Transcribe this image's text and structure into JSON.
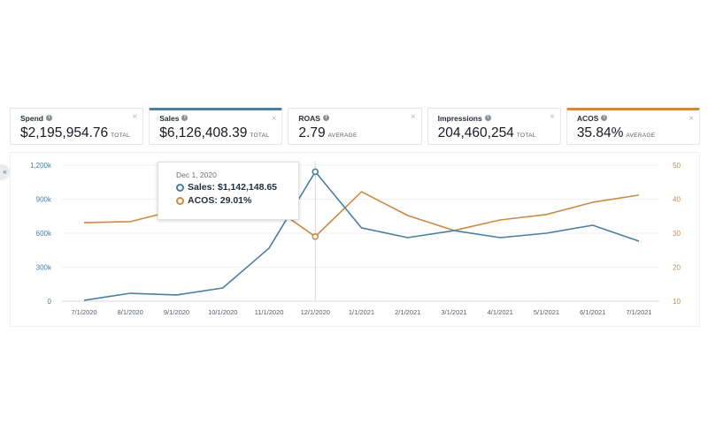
{
  "sidebar": {
    "collapse_label": "«"
  },
  "metric_cards": [
    {
      "title": "Spend",
      "value": "$2,195,954.76",
      "unit": "TOTAL",
      "selected": false,
      "accent": null
    },
    {
      "title": "Sales",
      "value": "$6,126,408.39",
      "unit": "TOTAL",
      "selected": true,
      "accent": "#4a7fa0"
    },
    {
      "title": "ROAS",
      "value": "2.79",
      "unit": "AVERAGE",
      "selected": false,
      "accent": null
    },
    {
      "title": "Impressions",
      "value": "204,460,254",
      "unit": "TOTAL",
      "selected": false,
      "accent": null
    },
    {
      "title": "ACOS",
      "value": "35.84%",
      "unit": "AVERAGE",
      "selected": true,
      "accent": "#c98b45"
    }
  ],
  "icons": {
    "info": "info-icon",
    "close": "close-icon",
    "close_glyph": "×",
    "info_glyph": "i"
  },
  "tooltip": {
    "date": "Dec 1, 2020",
    "rows": [
      {
        "label": "Sales: $1,142,148.65",
        "color": "#4a7fa0"
      },
      {
        "label": "ACOS: 29.01%",
        "color": "#c98b45"
      }
    ]
  },
  "chart_data": {
    "type": "line",
    "title": "",
    "xlabel": "",
    "ylabel": "Sales",
    "y2label": "ACOS",
    "x": [
      "7/1/2020",
      "8/1/2020",
      "9/1/2020",
      "10/1/2020",
      "11/1/2020",
      "12/1/2020",
      "1/1/2021",
      "2/1/2021",
      "3/1/2021",
      "4/1/2021",
      "5/1/2021",
      "6/1/2021",
      "7/1/2021"
    ],
    "ylim": [
      0,
      1200000
    ],
    "y_ticks": [
      0,
      300000,
      600000,
      900000,
      1200000
    ],
    "y_tick_labels": [
      "0",
      "300k",
      "600k",
      "900k",
      "1,200k"
    ],
    "y2lim": [
      10,
      50
    ],
    "y2_ticks": [
      10,
      20,
      30,
      40,
      50
    ],
    "y2_tick_labels": [
      "10",
      "20",
      "30",
      "40",
      "50"
    ],
    "grid": true,
    "highlight_index": 5,
    "series": [
      {
        "name": "Sales",
        "axis": "left",
        "color": "#4a7fa0",
        "values": [
          8000,
          70000,
          55000,
          117000,
          468000,
          1142148.65,
          647000,
          561000,
          623000,
          561000,
          600000,
          670000,
          530000
        ]
      },
      {
        "name": "ACOS",
        "axis": "right",
        "color": "#c98b45",
        "values": [
          33.1,
          33.4,
          36.8,
          37.5,
          38.5,
          29.01,
          42.2,
          35.2,
          30.8,
          33.9,
          35.5,
          39.1,
          41.2
        ]
      }
    ]
  }
}
